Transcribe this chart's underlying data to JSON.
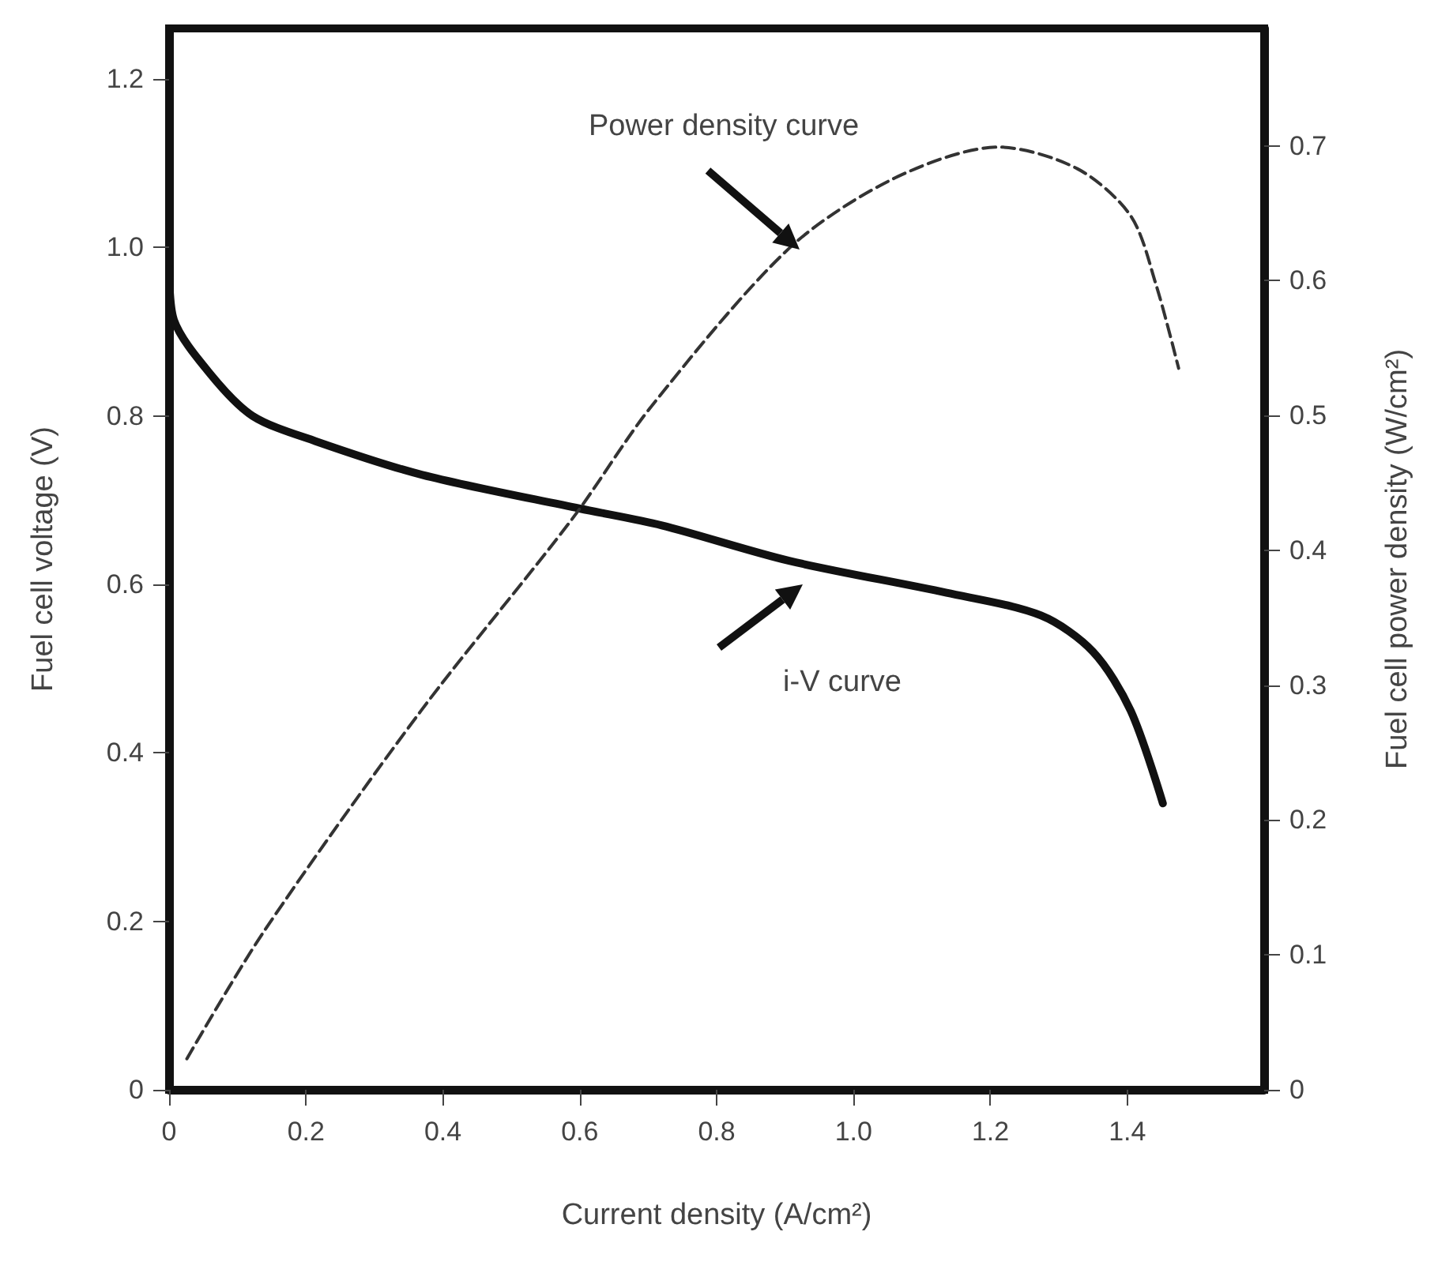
{
  "chart_data": {
    "type": "line",
    "xlabel": "Current density (A/cm²)",
    "ylabel": "Fuel cell voltage (V)",
    "y2label": "Fuel cell power density (W/cm²)",
    "annotations": [
      "Power density curve",
      "i-V curve"
    ],
    "series": [
      {
        "color": "#111111",
        "line_style": "solid",
        "x": [
          0,
          0.007,
          0.06,
          0.122,
          0.214,
          0.37,
          0.6,
          0.72,
          0.906,
          1.136,
          1.274,
          1.35,
          1.405,
          1.452
        ],
        "values": [
          0.975,
          0.914,
          0.85,
          0.8,
          0.77,
          0.73,
          0.69,
          0.67,
          0.628,
          0.59,
          0.563,
          0.52,
          0.45,
          0.34
        ]
      },
      {
        "axis": "y2",
        "color": "#333333",
        "line_style": "dashed",
        "x": [
          0.026,
          0.138,
          0.368,
          0.59,
          0.705,
          0.906,
          1.06,
          1.212,
          1.327,
          1.405,
          1.442,
          1.475
        ],
        "values": [
          0.023,
          0.117,
          0.281,
          0.424,
          0.507,
          0.624,
          0.676,
          0.699,
          0.683,
          0.648,
          0.597,
          0.535
        ]
      }
    ],
    "marker": "none",
    "grid": false,
    "xlim": [
      0,
      1.6
    ],
    "xticks": [
      0,
      0.2,
      0.4,
      0.6,
      0.8,
      {
        "value": 1,
        "label": "1.0"
      },
      1.2,
      1.4
    ],
    "ylim": [
      0,
      1.26
    ],
    "yticks": [
      0,
      0.2,
      0.4,
      0.6,
      0.8,
      {
        "value": 1,
        "label": "1.0"
      },
      1.2
    ],
    "y2lim": [
      0,
      0.787
    ],
    "y2ticks": [
      0,
      0.1,
      0.2,
      0.3,
      0.4,
      0.5,
      0.6,
      0.7
    ]
  }
}
